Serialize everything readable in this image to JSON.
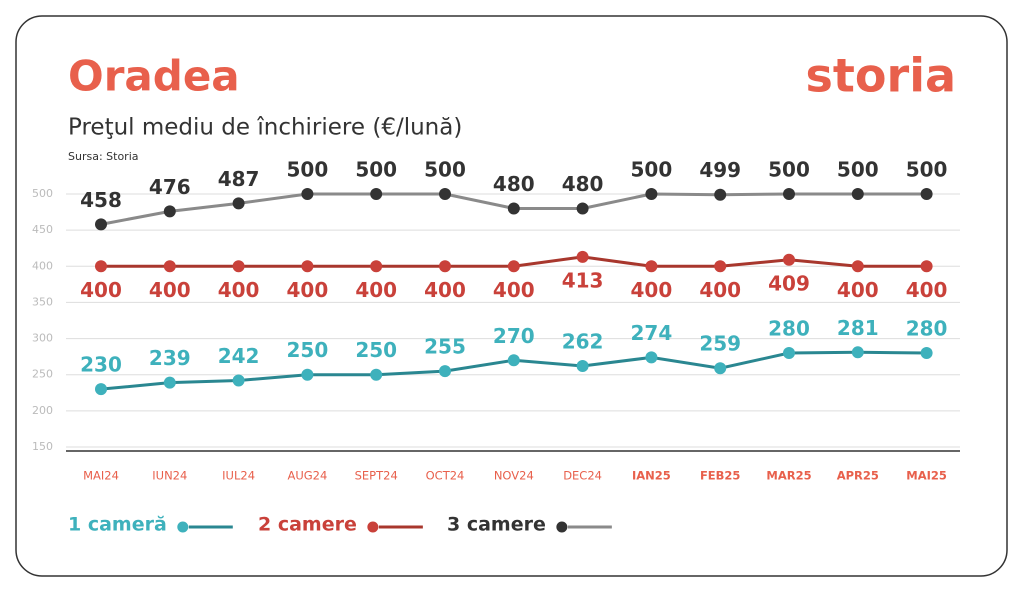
{
  "chart_data": {
    "type": "line",
    "title": "Oradea",
    "logo": "storia",
    "subtitle": "Preţul mediu de închiriere (€/lună)",
    "source": "Sursa: Storia",
    "categories": [
      "MAI24",
      "IUN24",
      "IUL24",
      "AUG24",
      "SEPT24",
      "OCT24",
      "NOV24",
      "DEC24",
      "IAN25",
      "FEB25",
      "MAR25",
      "APR25",
      "MAI25"
    ],
    "ylim": [
      150,
      500
    ],
    "yticks": [
      150,
      200,
      250,
      300,
      350,
      400,
      450,
      500
    ],
    "grid": true,
    "series": [
      {
        "name": "1 cameră",
        "color": "#2a8791",
        "marker_color": "#3eb1bc",
        "label_position": "above",
        "values": [
          230,
          239,
          242,
          250,
          250,
          255,
          270,
          262,
          274,
          259,
          280,
          281,
          280
        ]
      },
      {
        "name": "2 camere",
        "color": "#a8372d",
        "marker_color": "#c9413a",
        "label_position": "below",
        "values": [
          400,
          400,
          400,
          400,
          400,
          400,
          400,
          413,
          400,
          400,
          409,
          400,
          400
        ]
      },
      {
        "name": "3 camere",
        "color": "#8a8a8a",
        "marker_color": "#333333",
        "label_position": "above",
        "values": [
          458,
          476,
          487,
          500,
          500,
          500,
          480,
          480,
          500,
          499,
          500,
          500,
          500
        ]
      }
    ]
  }
}
